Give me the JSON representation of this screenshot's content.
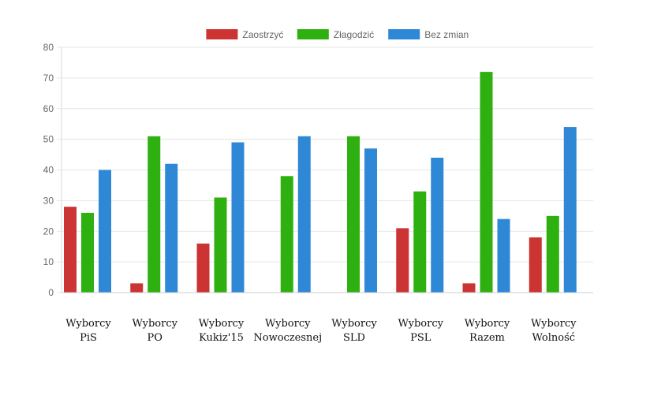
{
  "chart_data": {
    "type": "bar",
    "title": "",
    "xlabel": "",
    "ylabel": "",
    "ylim": [
      0,
      80
    ],
    "yticks": [
      0,
      10,
      20,
      30,
      40,
      50,
      60,
      70,
      80
    ],
    "grid": true,
    "legend_position": "top",
    "categories": [
      [
        "Wyborcy",
        "PiS"
      ],
      [
        "Wyborcy",
        "PO"
      ],
      [
        "Wyborcy",
        "Kukiz'15"
      ],
      [
        "Wyborcy",
        "Nowoczesnej"
      ],
      [
        "Wyborcy",
        "SLD"
      ],
      [
        "Wyborcy",
        "PSL"
      ],
      [
        "Wyborcy",
        "Razem"
      ],
      [
        "Wyborcy",
        "Wolność"
      ]
    ],
    "series": [
      {
        "name": "Zaostrzyć",
        "color": "#cc3333",
        "values": [
          28,
          3,
          16,
          0,
          0,
          21,
          3,
          18
        ]
      },
      {
        "name": "Złagodzić",
        "color": "#2db010",
        "values": [
          26,
          51,
          31,
          38,
          51,
          33,
          72,
          25
        ]
      },
      {
        "name": "Bez zmian",
        "color": "#2e88d6",
        "values": [
          40,
          42,
          49,
          51,
          47,
          44,
          24,
          54
        ]
      }
    ]
  }
}
